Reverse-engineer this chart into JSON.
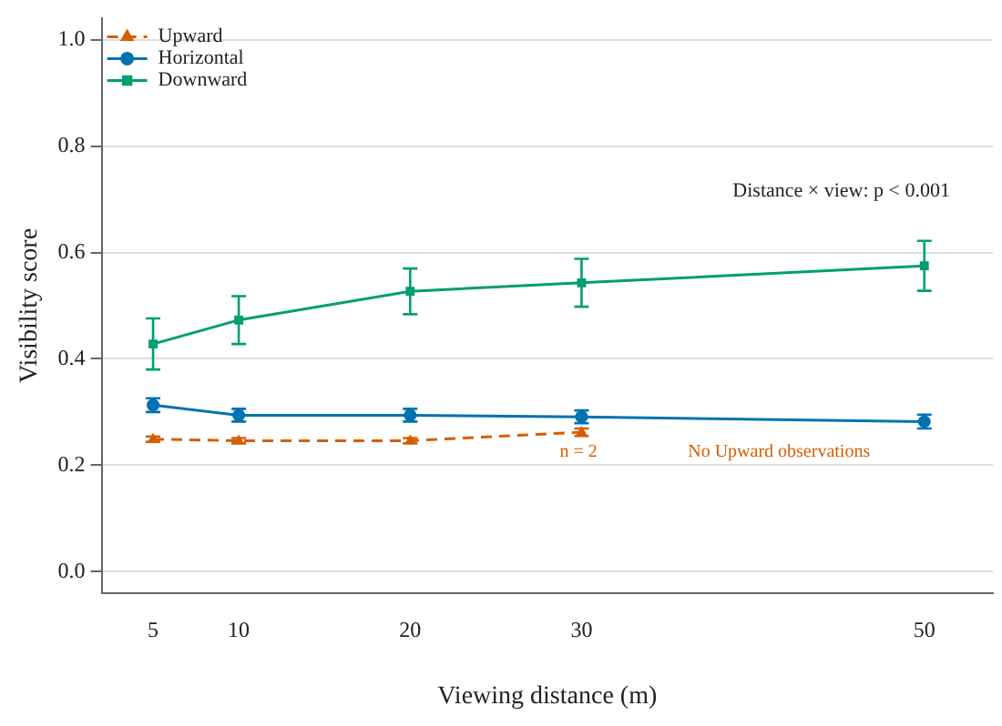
{
  "chart_data": {
    "type": "line",
    "xlabel": "Viewing distance (m)",
    "ylabel": "Visibility score",
    "x": [
      5,
      10,
      20,
      30,
      50
    ],
    "series": [
      {
        "name": "Upward",
        "color": "#d55e00",
        "values": [
          0.249,
          0.246,
          0.246,
          0.262,
          null
        ],
        "errors": [
          0.005,
          0.005,
          0.005,
          0.007,
          null
        ],
        "marker": "triangle",
        "line_style": "dashed"
      },
      {
        "name": "Horizontal",
        "color": "#0072b2",
        "values": [
          0.313,
          0.294,
          0.294,
          0.291,
          0.282
        ],
        "errors": [
          0.013,
          0.012,
          0.012,
          0.012,
          0.013
        ],
        "marker": "circle",
        "line_style": "solid"
      },
      {
        "name": "Downward",
        "color": "#009e73",
        "values": [
          0.428,
          0.473,
          0.527,
          0.543,
          0.575
        ],
        "errors": [
          0.048,
          0.045,
          0.043,
          0.045,
          0.047
        ],
        "marker": "square",
        "line_style": "solid"
      }
    ],
    "annotations": [
      "Distance × view: p < 0.001",
      "n = 2",
      "No Upward observations"
    ],
    "xlim": [
      2,
      54
    ],
    "xticks": [
      5,
      10,
      20,
      30,
      50
    ],
    "ylim": [
      -0.04,
      1.04
    ],
    "yticks": [
      {
        "value": 0,
        "label": "0.0"
      },
      {
        "value": 0.2,
        "label": "0.2"
      },
      {
        "value": 0.4,
        "label": "0.4"
      },
      {
        "value": 0.6,
        "label": "0.6"
      },
      {
        "value": 0.8,
        "label": "0.8"
      },
      {
        "value": 1,
        "label": "1.0"
      }
    ],
    "grid": "y",
    "legend": "top left"
  }
}
